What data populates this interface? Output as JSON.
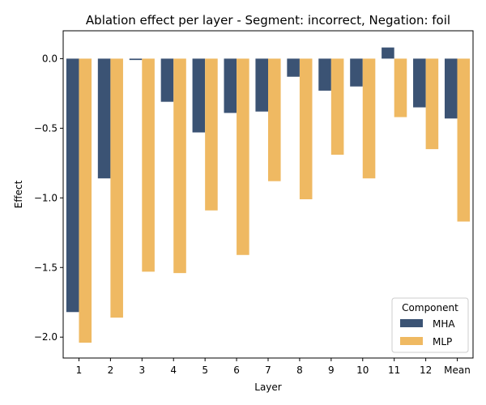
{
  "chart_data": {
    "type": "bar",
    "title": "Ablation effect per layer - Segment: incorrect, Negation: foil",
    "xlabel": "Layer",
    "ylabel": "Effect",
    "categories": [
      "1",
      "2",
      "3",
      "4",
      "5",
      "6",
      "7",
      "8",
      "9",
      "10",
      "11",
      "12",
      "Mean"
    ],
    "series": [
      {
        "name": "MHA",
        "color": "#3b5374",
        "values": [
          -1.82,
          -0.86,
          -0.01,
          -0.31,
          -0.53,
          -0.39,
          -0.38,
          -0.13,
          -0.23,
          -0.2,
          0.08,
          -0.35,
          -0.43
        ]
      },
      {
        "name": "MLP",
        "color": "#efb962",
        "values": [
          -2.04,
          -1.86,
          -1.53,
          -1.54,
          -1.09,
          -1.41,
          -0.88,
          -1.01,
          -0.69,
          -0.86,
          -0.42,
          -0.65,
          -1.17
        ]
      }
    ],
    "ylim": [
      -2.15,
      0.2
    ],
    "yticks": [
      0.0,
      -0.5,
      -1.0,
      -1.5,
      -2.0
    ],
    "ytick_labels": [
      "0.0",
      "−0.5",
      "−1.0",
      "−1.5",
      "−2.0"
    ],
    "grid": false,
    "legend": {
      "title": "Component",
      "position": "lower-right"
    }
  }
}
